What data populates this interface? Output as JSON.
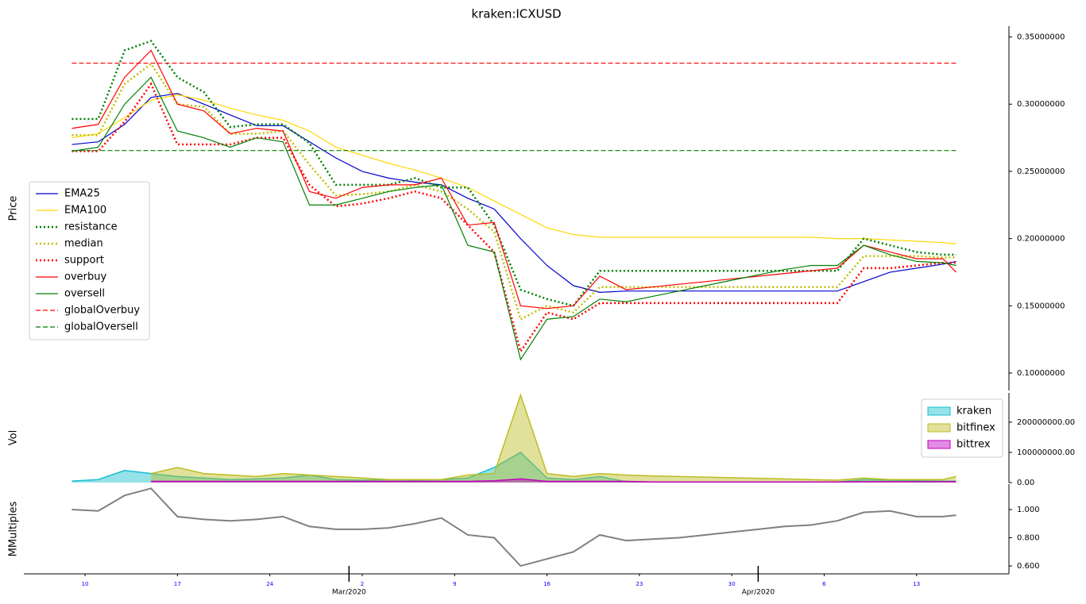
{
  "chart_data": [
    {
      "type": "line",
      "title": "kraken:ICXUSD",
      "ylabel": "Price",
      "x": [
        "2020-02-09",
        "2020-02-11",
        "2020-02-13",
        "2020-02-15",
        "2020-02-17",
        "2020-02-19",
        "2020-02-21",
        "2020-02-23",
        "2020-02-25",
        "2020-02-27",
        "2020-02-29",
        "2020-03-02",
        "2020-03-04",
        "2020-03-06",
        "2020-03-08",
        "2020-03-10",
        "2020-03-12",
        "2020-03-14",
        "2020-03-16",
        "2020-03-18",
        "2020-03-20",
        "2020-03-22",
        "2020-03-24",
        "2020-03-26",
        "2020-03-28",
        "2020-03-30",
        "2020-04-01",
        "2020-04-03",
        "2020-04-05",
        "2020-04-07",
        "2020-04-09",
        "2020-04-11",
        "2020-04-13",
        "2020-04-15",
        "2020-04-16"
      ],
      "xlim": [
        "2020-02-05",
        "2020-04-20"
      ],
      "ylim": [
        0.087,
        0.358
      ],
      "yticks": [
        {
          "value": 0.1,
          "label": "0.10000000"
        },
        {
          "value": 0.15,
          "label": "0.15000000"
        },
        {
          "value": 0.2,
          "label": "0.20000000"
        },
        {
          "value": 0.25,
          "label": "0.25000000"
        },
        {
          "value": 0.3,
          "label": "0.30000000"
        },
        {
          "value": 0.35,
          "label": "0.35000000"
        }
      ],
      "legend": "center left",
      "series": [
        {
          "name": "EMA25",
          "color": "#0000cd",
          "style": "solid",
          "values": [
            0.27,
            0.272,
            0.285,
            0.305,
            0.308,
            0.3,
            0.292,
            0.284,
            0.284,
            0.272,
            0.26,
            0.25,
            0.245,
            0.242,
            0.24,
            0.23,
            0.222,
            0.2,
            0.18,
            0.165,
            0.16,
            0.161,
            0.161,
            0.161,
            0.161,
            0.161,
            0.161,
            0.161,
            0.161,
            0.161,
            0.168,
            0.175,
            0.178,
            0.181,
            0.183
          ]
        },
        {
          "name": "EMA100",
          "color": "#ffd700",
          "style": "solid",
          "values": [
            0.275,
            0.278,
            0.29,
            0.303,
            0.307,
            0.303,
            0.297,
            0.292,
            0.288,
            0.28,
            0.268,
            0.262,
            0.256,
            0.251,
            0.245,
            0.238,
            0.228,
            0.218,
            0.208,
            0.203,
            0.201,
            0.201,
            0.201,
            0.201,
            0.201,
            0.201,
            0.201,
            0.201,
            0.201,
            0.2,
            0.2,
            0.199,
            0.198,
            0.197,
            0.196
          ]
        },
        {
          "name": "resistance",
          "color": "#008000",
          "style": "dotted",
          "values": [
            0.289,
            0.289,
            0.34,
            0.347,
            0.32,
            0.309,
            0.283,
            0.285,
            0.285,
            0.271,
            0.24,
            0.24,
            0.24,
            0.245,
            0.238,
            0.238,
            0.21,
            0.162,
            0.155,
            0.15,
            0.176,
            0.176,
            0.176,
            0.176,
            0.176,
            0.176,
            0.176,
            0.176,
            0.176,
            0.176,
            0.2,
            0.195,
            0.19,
            0.188,
            0.188
          ]
        },
        {
          "name": "median",
          "color": "#bfbf00",
          "style": "dotted",
          "values": [
            0.277,
            0.277,
            0.315,
            0.33,
            0.3,
            0.298,
            0.278,
            0.278,
            0.28,
            0.255,
            0.232,
            0.233,
            0.235,
            0.24,
            0.235,
            0.222,
            0.205,
            0.14,
            0.15,
            0.145,
            0.164,
            0.164,
            0.164,
            0.164,
            0.164,
            0.164,
            0.164,
            0.164,
            0.164,
            0.164,
            0.187,
            0.187,
            0.187,
            0.186,
            0.186
          ]
        },
        {
          "name": "support",
          "color": "#ff0000",
          "style": "dotted",
          "values": [
            0.265,
            0.265,
            0.287,
            0.315,
            0.27,
            0.27,
            0.27,
            0.275,
            0.275,
            0.24,
            0.224,
            0.226,
            0.23,
            0.235,
            0.23,
            0.21,
            0.19,
            0.116,
            0.145,
            0.14,
            0.152,
            0.152,
            0.152,
            0.152,
            0.152,
            0.152,
            0.152,
            0.152,
            0.152,
            0.152,
            0.178,
            0.178,
            0.18,
            0.182,
            0.182
          ]
        },
        {
          "name": "overbuy",
          "color": "#ff0000",
          "style": "solid",
          "values": [
            0.282,
            0.285,
            0.32,
            0.34,
            0.3,
            0.295,
            0.278,
            0.282,
            0.28,
            0.235,
            0.23,
            0.238,
            0.24,
            0.24,
            0.245,
            0.21,
            0.212,
            0.15,
            0.148,
            0.15,
            0.172,
            0.162,
            0.164,
            0.166,
            0.168,
            0.17,
            0.172,
            0.174,
            0.176,
            0.178,
            0.195,
            0.19,
            0.185,
            0.185,
            0.175
          ]
        },
        {
          "name": "oversell",
          "color": "#008000",
          "style": "solid",
          "values": [
            0.265,
            0.268,
            0.3,
            0.32,
            0.28,
            0.275,
            0.268,
            0.275,
            0.272,
            0.225,
            0.225,
            0.23,
            0.235,
            0.238,
            0.24,
            0.195,
            0.19,
            0.11,
            0.14,
            0.142,
            0.155,
            0.153,
            0.157,
            0.161,
            0.165,
            0.169,
            0.173,
            0.177,
            0.18,
            0.18,
            0.195,
            0.188,
            0.183,
            0.182,
            0.18
          ]
        }
      ],
      "hlines": [
        {
          "name": "globalOverbuy",
          "color": "#ff0000",
          "style": "dashed",
          "value": 0.3305
        },
        {
          "name": "globalOversell",
          "color": "#008000",
          "style": "dashed",
          "value": 0.2655
        }
      ]
    },
    {
      "type": "area",
      "ylabel": "Vol",
      "x": [
        "2020-02-09",
        "2020-02-11",
        "2020-02-13",
        "2020-02-15",
        "2020-02-17",
        "2020-02-19",
        "2020-02-21",
        "2020-02-23",
        "2020-02-25",
        "2020-02-27",
        "2020-02-29",
        "2020-03-02",
        "2020-03-04",
        "2020-03-06",
        "2020-03-08",
        "2020-03-10",
        "2020-03-12",
        "2020-03-14",
        "2020-03-16",
        "2020-03-18",
        "2020-03-20",
        "2020-03-22",
        "2020-03-24",
        "2020-03-26",
        "2020-03-28",
        "2020-03-30",
        "2020-04-01",
        "2020-04-03",
        "2020-04-05",
        "2020-04-07",
        "2020-04-09",
        "2020-04-11",
        "2020-04-13",
        "2020-04-15",
        "2020-04-16"
      ],
      "xlim": [
        "2020-02-05",
        "2020-04-20"
      ],
      "ylim": [
        0,
        297000000
      ],
      "yticks": [
        {
          "value": 0,
          "label": "0.00"
        },
        {
          "value": 100000000,
          "label": "100000000.00"
        },
        {
          "value": 200000000,
          "label": "200000000.00"
        }
      ],
      "legend": "upper right",
      "series": [
        {
          "name": "kraken",
          "color": "#17becf",
          "values": [
            5000000,
            10000000,
            40000000,
            30000000,
            20000000,
            15000000,
            10000000,
            12000000,
            15000000,
            25000000,
            10000000,
            8000000,
            10000000,
            8000000,
            10000000,
            15000000,
            50000000,
            100000000,
            15000000,
            10000000,
            20000000,
            3000000,
            2000000,
            2000000,
            2000000,
            2000000,
            2000000,
            2000000,
            2000000,
            2000000,
            10000000,
            8000000,
            6000000,
            5000000,
            5000000
          ]
        },
        {
          "name": "bitfinex",
          "color": "#bcbd22",
          "values": [
            null,
            null,
            null,
            30000000,
            50000000,
            30000000,
            25000000,
            20000000,
            30000000,
            25000000,
            20000000,
            15000000,
            10000000,
            10000000,
            10000000,
            25000000,
            30000000,
            290000000,
            30000000,
            20000000,
            30000000,
            25000000,
            22000000,
            20000000,
            18000000,
            16000000,
            14000000,
            12000000,
            10000000,
            8000000,
            15000000,
            10000000,
            10000000,
            10000000,
            20000000
          ]
        },
        {
          "name": "bittrex",
          "color": "#c000c0",
          "values": [
            null,
            null,
            null,
            4000000,
            4000000,
            4000000,
            4000000,
            4000000,
            4000000,
            4000000,
            4000000,
            4000000,
            4000000,
            4000000,
            4000000,
            4000000,
            6000000,
            12000000,
            4000000,
            4000000,
            4000000,
            4000000,
            2000000,
            2000000,
            2000000,
            2000000,
            2000000,
            2000000,
            2000000,
            2000000,
            3000000,
            3000000,
            3000000,
            3000000,
            3000000
          ]
        }
      ]
    },
    {
      "type": "line",
      "ylabel": "MMultiples",
      "x": [
        "2020-02-09",
        "2020-02-11",
        "2020-02-13",
        "2020-02-15",
        "2020-02-17",
        "2020-02-19",
        "2020-02-21",
        "2020-02-23",
        "2020-02-25",
        "2020-02-27",
        "2020-02-29",
        "2020-03-02",
        "2020-03-04",
        "2020-03-06",
        "2020-03-08",
        "2020-03-10",
        "2020-03-12",
        "2020-03-14",
        "2020-03-16",
        "2020-03-18",
        "2020-03-20",
        "2020-03-22",
        "2020-03-24",
        "2020-03-26",
        "2020-03-28",
        "2020-03-30",
        "2020-04-01",
        "2020-04-03",
        "2020-04-05",
        "2020-04-07",
        "2020-04-09",
        "2020-04-11",
        "2020-04-13",
        "2020-04-15",
        "2020-04-16"
      ],
      "xlim": [
        "2020-02-05",
        "2020-04-20"
      ],
      "ylim": [
        0.544,
        1.18
      ],
      "yticks": [
        {
          "value": 0.6,
          "label": "0.600"
        },
        {
          "value": 0.8,
          "label": "0.800"
        },
        {
          "value": 1.0,
          "label": "1.000"
        }
      ],
      "xticks": [
        {
          "value": "2020-02-10",
          "label": "10"
        },
        {
          "value": "2020-02-17",
          "label": "17"
        },
        {
          "value": "2020-02-24",
          "label": "24"
        },
        {
          "value": "2020-03-02",
          "label": "2"
        },
        {
          "value": "2020-03-09",
          "label": "9"
        },
        {
          "value": "2020-03-16",
          "label": "16"
        },
        {
          "value": "2020-03-23",
          "label": "23"
        },
        {
          "value": "2020-03-30",
          "label": "30"
        },
        {
          "value": "2020-04-06",
          "label": "6"
        },
        {
          "value": "2020-04-13",
          "label": "13"
        }
      ],
      "xmajorticks": [
        {
          "value": "2020-03-01",
          "label": "Mar/2020"
        },
        {
          "value": "2020-04-01",
          "label": "Apr/2020"
        }
      ],
      "series": [
        {
          "color": "#808080",
          "style": "solid",
          "values": [
            1.0,
            0.99,
            1.1,
            1.15,
            0.95,
            0.93,
            0.92,
            0.93,
            0.95,
            0.88,
            0.86,
            0.86,
            0.87,
            0.9,
            0.94,
            0.82,
            0.8,
            0.6,
            0.65,
            0.7,
            0.82,
            0.78,
            0.79,
            0.8,
            0.82,
            0.84,
            0.86,
            0.88,
            0.89,
            0.92,
            0.98,
            0.99,
            0.95,
            0.95,
            0.96
          ]
        }
      ]
    }
  ]
}
